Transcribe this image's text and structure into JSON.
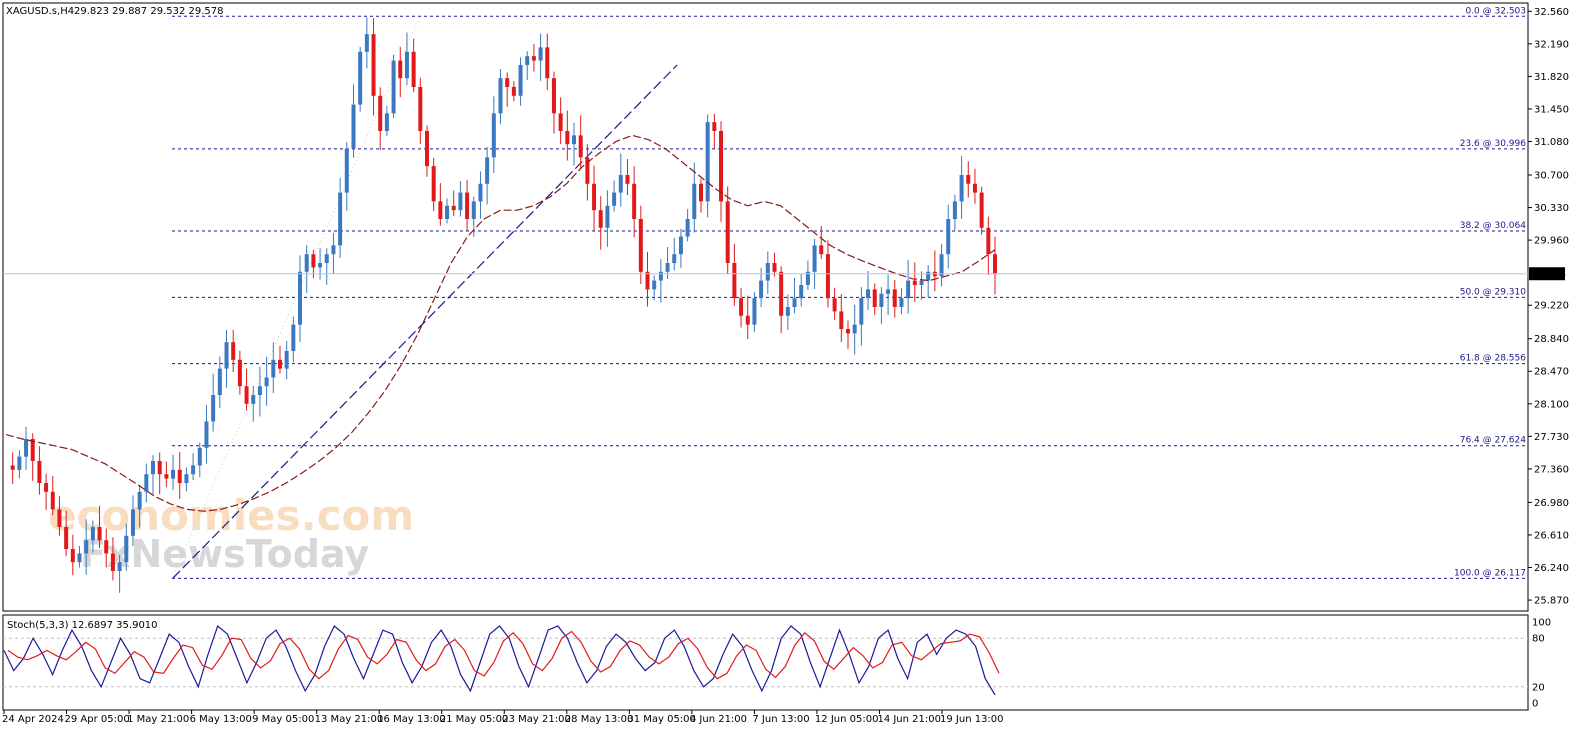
{
  "header": {
    "symbol": "XAGUSD.s,H4",
    "ohlc": "29.823 29.887 29.532 29.578"
  },
  "watermark": {
    "line1": "economies.com",
    "line2": "FxNewsToday"
  },
  "chart_data": {
    "type": "candlestick",
    "symbol": "XAGUSD.s",
    "timeframe": "H4",
    "last_price": "29.578",
    "y_range": [
      25.78,
      32.62
    ],
    "y_ticks": [
      "32.560",
      "32.190",
      "31.820",
      "31.450",
      "31.080",
      "30.700",
      "30.330",
      "29.960",
      "29.220",
      "28.840",
      "28.470",
      "28.100",
      "27.730",
      "27.360",
      "26.980",
      "26.610",
      "26.240",
      "25.870"
    ],
    "x_labels": [
      "24 Apr 2024",
      "29 Apr 05:00",
      "1 May 21:00",
      "6 May 13:00",
      "9 May 05:00",
      "13 May 21:00",
      "16 May 13:00",
      "21 May 05:00",
      "23 May 21:00",
      "28 May 13:00",
      "31 May 05:00",
      "4 Jun 21:00",
      "7 Jun 13:00",
      "12 Jun 05:00",
      "14 Jun 21:00",
      "19 Jun 13:00"
    ],
    "fib_levels": [
      {
        "label": "0.0 @ 32.503",
        "value": 32.503
      },
      {
        "label": "23.6 @ 30.996",
        "value": 30.996
      },
      {
        "label": "38.2 @ 30.064",
        "value": 30.064
      },
      {
        "label": "50.0 @ 29.310",
        "value": 29.31
      },
      {
        "label": "61.8 @ 28.556",
        "value": 28.556
      },
      {
        "label": "76.4 @ 27.624",
        "value": 27.624
      },
      {
        "label": "100.0 @ 26.117",
        "value": 26.117
      }
    ],
    "close_path": [
      27.4,
      27.35,
      27.5,
      27.7,
      27.45,
      27.2,
      27.1,
      26.9,
      26.7,
      26.45,
      26.3,
      26.4,
      26.55,
      26.7,
      26.55,
      26.4,
      26.2,
      26.3,
      26.6,
      26.9,
      27.1,
      27.3,
      27.45,
      27.3,
      27.25,
      27.35,
      27.2,
      27.3,
      27.4,
      27.6,
      27.9,
      28.2,
      28.5,
      28.8,
      28.6,
      28.3,
      28.1,
      28.2,
      28.3,
      28.4,
      28.6,
      28.5,
      28.7,
      29.0,
      29.6,
      29.8,
      29.65,
      29.7,
      29.8,
      29.9,
      30.5,
      31.0,
      31.5,
      32.1,
      32.3,
      31.6,
      31.2,
      31.4,
      32.0,
      31.8,
      32.1,
      31.7,
      31.2,
      30.8,
      30.4,
      30.2,
      30.35,
      30.3,
      30.5,
      30.2,
      30.4,
      30.6,
      30.9,
      31.4,
      31.8,
      31.7,
      31.6,
      31.95,
      32.05,
      32.0,
      32.15,
      31.8,
      31.4,
      31.2,
      31.05,
      31.15,
      30.9,
      30.6,
      30.3,
      30.1,
      30.35,
      30.5,
      30.7,
      30.6,
      30.2,
      29.6,
      29.4,
      29.5,
      29.6,
      29.7,
      29.8,
      30.0,
      30.2,
      30.6,
      30.4,
      31.3,
      31.2,
      30.4,
      29.7,
      29.3,
      29.1,
      29.0,
      29.3,
      29.5,
      29.7,
      29.6,
      29.1,
      29.2,
      29.3,
      29.45,
      29.6,
      29.9,
      29.8,
      29.3,
      29.15,
      28.95,
      28.9,
      29.0,
      29.3,
      29.4,
      29.2,
      29.35,
      29.4,
      29.2,
      29.3,
      29.5,
      29.45,
      29.5,
      29.6,
      29.55,
      29.8,
      30.2,
      30.4,
      30.7,
      30.6,
      30.5,
      30.1,
      29.8,
      29.578
    ],
    "ma_path": [
      27.75,
      27.7,
      27.66,
      27.62,
      27.58,
      27.5,
      27.42,
      27.3,
      27.18,
      27.05,
      26.96,
      26.9,
      26.88,
      26.9,
      26.95,
      27.02,
      27.1,
      27.2,
      27.32,
      27.45,
      27.6,
      27.78,
      28.0,
      28.25,
      28.55,
      28.9,
      29.3,
      29.7,
      30.0,
      30.2,
      30.3,
      30.3,
      30.35,
      30.45,
      30.6,
      30.8,
      30.95,
      31.08,
      31.15,
      31.1,
      31.0,
      30.85,
      30.7,
      30.55,
      30.42,
      30.35,
      30.4,
      30.35,
      30.2,
      30.05,
      29.9,
      29.8,
      29.72,
      29.65,
      29.58,
      29.52,
      29.5,
      29.55,
      29.6,
      29.72,
      29.85
    ],
    "trendline": [
      [
        26.12,
        0.0
      ],
      [
        31.95,
        0.295
      ]
    ],
    "stoch": {
      "label": "Stoch(5,3,3) 12.6897 35.9010",
      "k": 12.6897,
      "d": 35.901,
      "levels": [
        "100",
        "80",
        "20",
        "0"
      ],
      "k_path": [
        65,
        40,
        55,
        80,
        60,
        35,
        65,
        90,
        70,
        40,
        20,
        50,
        80,
        60,
        30,
        25,
        55,
        85,
        75,
        45,
        20,
        60,
        95,
        85,
        55,
        25,
        50,
        80,
        90,
        70,
        40,
        15,
        35,
        70,
        95,
        85,
        55,
        30,
        60,
        90,
        85,
        50,
        25,
        45,
        75,
        90,
        70,
        35,
        15,
        50,
        85,
        95,
        80,
        45,
        20,
        55,
        90,
        95,
        80,
        50,
        25,
        40,
        70,
        85,
        75,
        55,
        40,
        50,
        80,
        90,
        70,
        40,
        20,
        30,
        60,
        85,
        70,
        40,
        15,
        40,
        80,
        95,
        85,
        50,
        20,
        55,
        90,
        60,
        25,
        45,
        80,
        90,
        55,
        30,
        75,
        85,
        60,
        80,
        90,
        85,
        70,
        30,
        10
      ]
    }
  }
}
